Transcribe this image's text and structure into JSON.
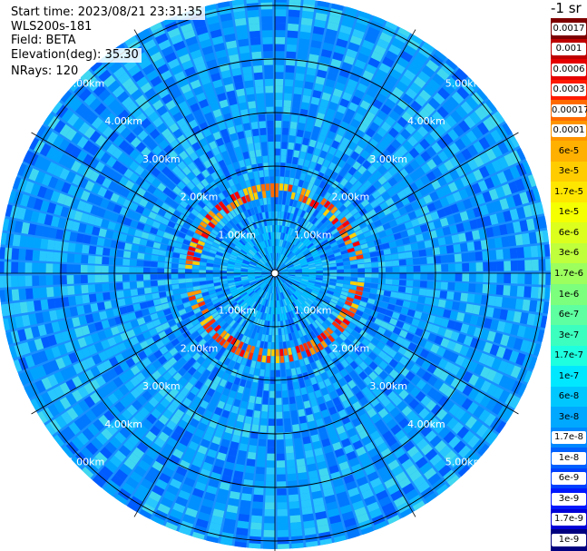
{
  "info": {
    "start_time": "Start time: 2023/08/21 23:31:35",
    "instrument": "WLS200s-181",
    "field": "Field: BETA",
    "elevation": "Elevation(deg): 35.30",
    "nrays": "NRays: 120"
  },
  "colorbar": {
    "unit": "-1 sr",
    "ticks": [
      "0.0017",
      "0.001",
      "0.0006",
      "0.0003",
      "0.00017",
      "0.0001",
      "6e-5",
      "3e-5",
      "1.7e-5",
      "1e-5",
      "6e-6",
      "3e-6",
      "1.7e-6",
      "1e-6",
      "6e-7",
      "3e-7",
      "1.7e-7",
      "1e-7",
      "6e-8",
      "3e-8",
      "1.7e-8",
      "1e-8",
      "6e-9",
      "3e-9",
      "1.7e-9",
      "1e-9"
    ],
    "colors": [
      "#7f0000",
      "#bf0000",
      "#e60000",
      "#ff1a00",
      "#ff6a00",
      "#ff9400",
      "#ffb000",
      "#ffcc00",
      "#ffe600",
      "#f5ff00",
      "#dcff1e",
      "#bfff3c",
      "#9cff5e",
      "#7cff7c",
      "#5effa0",
      "#3cffbf",
      "#1effe0",
      "#00e8ff",
      "#00c8ff",
      "#00a8ff",
      "#0088ff",
      "#0060ff",
      "#0040ff",
      "#0018ff",
      "#0000d8",
      "#000080"
    ]
  },
  "chart_data": {
    "type": "heatmap",
    "subtype": "polar PPI scan",
    "field": "BETA",
    "units": "-1 sr",
    "n_rays": 120,
    "range_rings_km": [
      1,
      2,
      3,
      4,
      5
    ],
    "ring_labels": [
      "1.00km",
      "2.00km",
      "3.00km",
      "4.00km",
      "5.00km"
    ],
    "ring_label_bearings_deg": [
      45,
      135,
      225,
      315
    ],
    "background_level": "1.7e-8",
    "features": [
      {
        "description": "ring of strong backscatter",
        "range_km": [
          1.3,
          1.6
        ],
        "peak_value": "0.0003"
      }
    ]
  }
}
